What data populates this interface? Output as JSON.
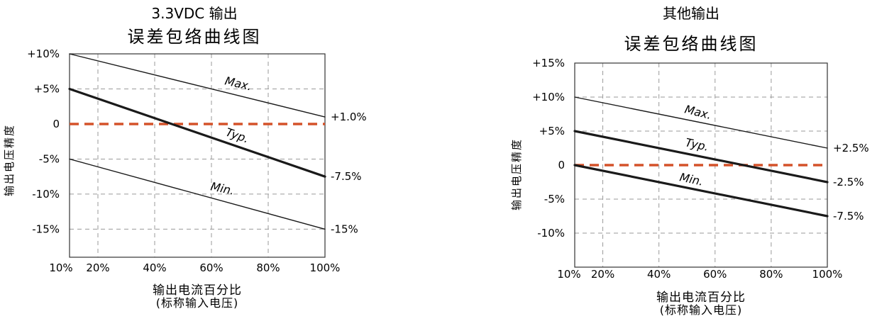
{
  "chart_data": [
    {
      "type": "line",
      "title": "3.3VDC 输出",
      "subtitle": "误差包络曲线图",
      "ylabel": "输出电压精度",
      "xlabel": "输出电流百分比",
      "xlabel_sub": "(标称输入电压)",
      "x_ticks": [
        "10%",
        "20%",
        "40%",
        "60%",
        "80%",
        "100%"
      ],
      "x_tick_values": [
        10,
        20,
        40,
        60,
        80,
        100
      ],
      "y_ticks": [
        "+10%",
        "+5%",
        "0",
        "-5%",
        "-10%",
        "-15%"
      ],
      "y_tick_values": [
        10,
        5,
        0,
        -5,
        -10,
        -15
      ],
      "xlim": [
        10,
        100
      ],
      "ylim": [
        -19,
        10
      ],
      "grid": true,
      "series": [
        {
          "name": "Max.",
          "x": [
            10,
            100
          ],
          "y": [
            10,
            1
          ],
          "end_label": "+1.0%"
        },
        {
          "name": "Typ.",
          "x": [
            10,
            100
          ],
          "y": [
            5,
            -7.5
          ],
          "end_label": "-7.5%"
        },
        {
          "name": "Min.",
          "x": [
            10,
            100
          ],
          "y": [
            -5,
            -15
          ],
          "end_label": "-15%"
        }
      ],
      "reference_line": {
        "y": 0,
        "color": "#d4522a"
      }
    },
    {
      "type": "line",
      "title": "其他输出",
      "subtitle": "误差包络曲线图",
      "ylabel": "输出电压精度",
      "xlabel": "输出电流百分比",
      "xlabel_sub": "(标称输入电压)",
      "x_ticks": [
        "10%",
        "20%",
        "40%",
        "60%",
        "80%",
        "100%"
      ],
      "x_tick_values": [
        10,
        20,
        40,
        60,
        80,
        100
      ],
      "y_ticks": [
        "+15%",
        "+10%",
        "+5%",
        "0",
        "-5%",
        "-10%"
      ],
      "y_tick_values": [
        15,
        10,
        5,
        0,
        -5,
        -10
      ],
      "xlim": [
        10,
        100
      ],
      "ylim": [
        -15,
        15
      ],
      "grid": true,
      "series": [
        {
          "name": "Max.",
          "x": [
            10,
            100
          ],
          "y": [
            10,
            2.5
          ],
          "end_label": "+2.5%"
        },
        {
          "name": "Typ.",
          "x": [
            10,
            100
          ],
          "y": [
            5,
            -2.5
          ],
          "end_label": "-2.5%"
        },
        {
          "name": "Min.",
          "x": [
            10,
            100
          ],
          "y": [
            0,
            -7.5
          ],
          "end_label": "-7.5%"
        }
      ],
      "reference_line": {
        "y": 0,
        "color": "#d4522a"
      }
    }
  ]
}
